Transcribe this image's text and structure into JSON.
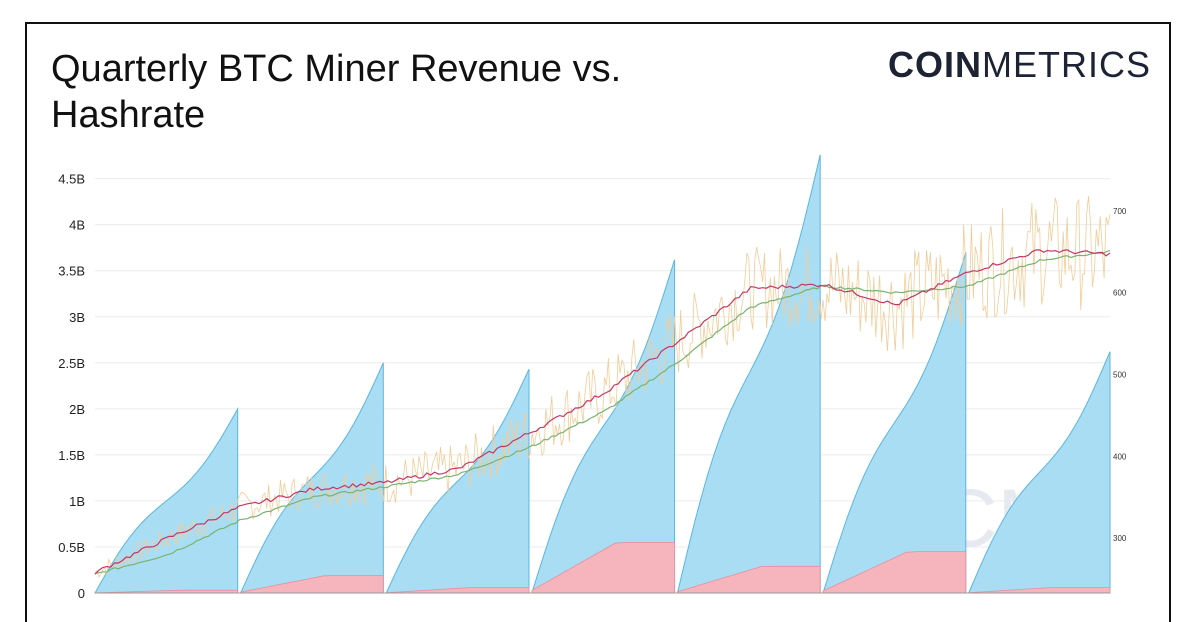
{
  "header": {
    "title": "Quarterly BTC Miner Revenue vs. Hashrate",
    "logo_bold": "COIN",
    "logo_light": "METRICS"
  },
  "watermark": "CM",
  "colors": {
    "revenue_fill": "#a9ddf3",
    "revenue_stroke": "#5ab6e0",
    "fees_fill": "#f6b4bd",
    "hashrate_daily": "#f2cc98",
    "ma_short": "#c2386a",
    "ma_long": "#78b46e",
    "grid": "#ebebeb"
  },
  "chart_data": {
    "type": "area",
    "left_axis": {
      "ylim": [
        0,
        4.8
      ],
      "ticks": [
        0,
        0.5,
        1,
        1.5,
        2,
        2.5,
        3,
        3.5,
        4,
        4.5
      ],
      "tick_labels": [
        "0",
        "0.5B",
        "1B",
        "1.5B",
        "2B",
        "2.5B",
        "3B",
        "3.5B",
        "4B",
        "4.5B"
      ]
    },
    "right_axis": {
      "ylim": [
        233,
        773
      ],
      "ticks": [
        300,
        400,
        500,
        600,
        700
      ],
      "tick_labels": [
        "300",
        "400",
        "500",
        "600",
        "700"
      ]
    },
    "x_range": [
      0,
      6.97
    ],
    "quarters": [
      {
        "start": 0.0,
        "end": 0.98,
        "peak": 2.0,
        "fees": 0.03
      },
      {
        "start": 1.0,
        "end": 1.98,
        "peak": 2.5,
        "fees": 0.19
      },
      {
        "start": 2.0,
        "end": 2.98,
        "peak": 2.43,
        "fees": 0.06
      },
      {
        "start": 3.0,
        "end": 3.98,
        "peak": 3.62,
        "fees": 0.55
      },
      {
        "start": 4.0,
        "end": 4.98,
        "peak": 4.76,
        "fees": 0.29
      },
      {
        "start": 5.0,
        "end": 5.98,
        "peak": 3.7,
        "fees": 0.45
      },
      {
        "start": 6.0,
        "end": 6.97,
        "peak": 2.62,
        "fees": 0.06
      }
    ],
    "hashrate_ma_short": [
      [
        0.0,
        258
      ],
      [
        0.5,
        300
      ],
      [
        1.0,
        338
      ],
      [
        1.5,
        360
      ],
      [
        2.0,
        368
      ],
      [
        2.5,
        385
      ],
      [
        3.0,
        430
      ],
      [
        3.5,
        478
      ],
      [
        4.0,
        540
      ],
      [
        4.5,
        605
      ],
      [
        5.0,
        610
      ],
      [
        5.5,
        585
      ],
      [
        6.0,
        625
      ],
      [
        6.5,
        652
      ],
      [
        6.97,
        647
      ]
    ],
    "hashrate_ma_long": [
      [
        0.0,
        256
      ],
      [
        0.5,
        280
      ],
      [
        1.0,
        322
      ],
      [
        1.5,
        350
      ],
      [
        2.0,
        363
      ],
      [
        2.5,
        378
      ],
      [
        3.0,
        412
      ],
      [
        3.5,
        455
      ],
      [
        4.0,
        515
      ],
      [
        4.5,
        582
      ],
      [
        5.0,
        608
      ],
      [
        5.5,
        600
      ],
      [
        6.0,
        608
      ],
      [
        6.5,
        640
      ],
      [
        6.97,
        650
      ]
    ]
  }
}
